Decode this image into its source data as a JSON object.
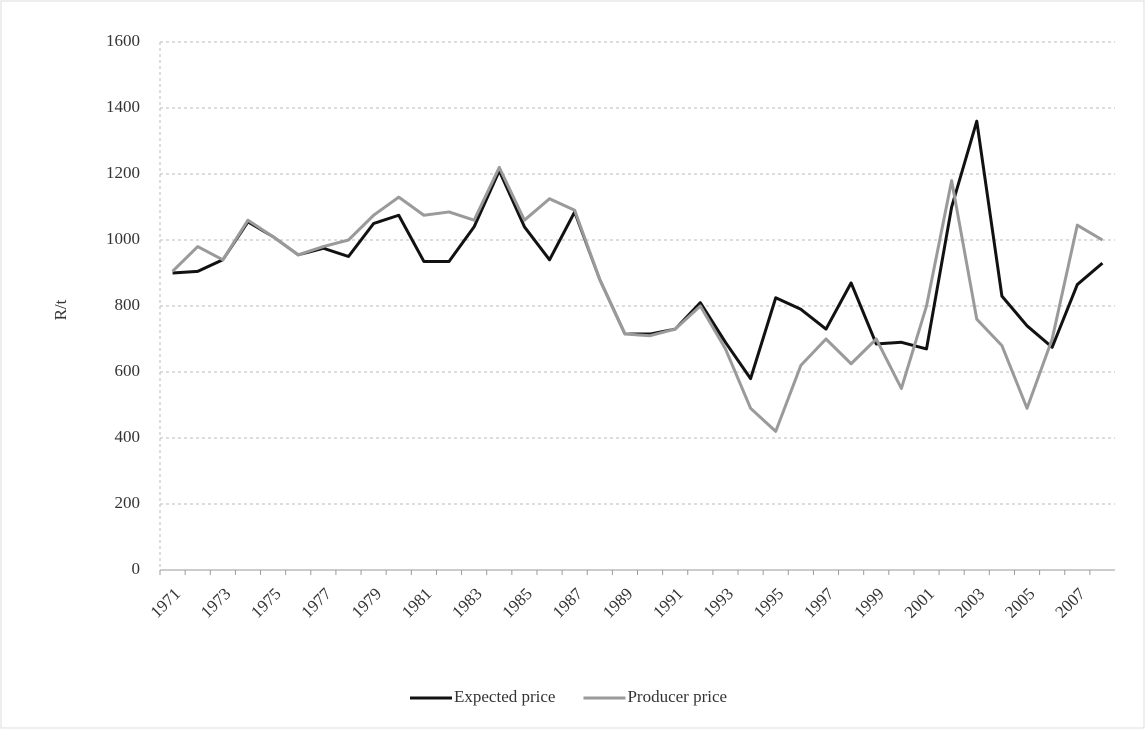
{
  "chart_data": {
    "type": "line",
    "ylabel": "R/t",
    "categories": [
      "1971",
      null,
      "1973",
      null,
      "1975",
      null,
      "1977",
      null,
      "1979",
      null,
      "1981",
      null,
      "1983",
      null,
      "1985",
      null,
      "1987",
      null,
      "1989",
      null,
      "1991",
      null,
      "1993",
      null,
      "1995",
      null,
      "1997",
      null,
      "1999",
      null,
      "2001",
      null,
      "2003",
      null,
      "2005",
      null,
      "2007",
      null
    ],
    "series": [
      {
        "name": "Expected price",
        "color": "#111111",
        "values": [
          900,
          905,
          940,
          1055,
          1010,
          955,
          975,
          950,
          1050,
          1075,
          935,
          935,
          1040,
          1210,
          1040,
          940,
          1085,
          880,
          715,
          715,
          730,
          810,
          690,
          580,
          825,
          790,
          730,
          870,
          685,
          690,
          670,
          1100,
          1360,
          830,
          740,
          675,
          865,
          930
        ]
      },
      {
        "name": "Producer price",
        "color": "#9a9a9a",
        "values": [
          905,
          980,
          940,
          1060,
          1010,
          955,
          980,
          1000,
          1075,
          1130,
          1075,
          1085,
          1060,
          1220,
          1060,
          1125,
          1090,
          880,
          715,
          710,
          730,
          800,
          670,
          490,
          420,
          620,
          700,
          625,
          700,
          550,
          800,
          1180,
          760,
          680,
          490,
          700,
          1045,
          1000
        ]
      }
    ],
    "ylim": [
      0,
      1600
    ],
    "yticks": [
      0,
      200,
      400,
      600,
      800,
      1000,
      1200,
      1400,
      1600
    ],
    "grid": true,
    "legend": "bottom"
  }
}
